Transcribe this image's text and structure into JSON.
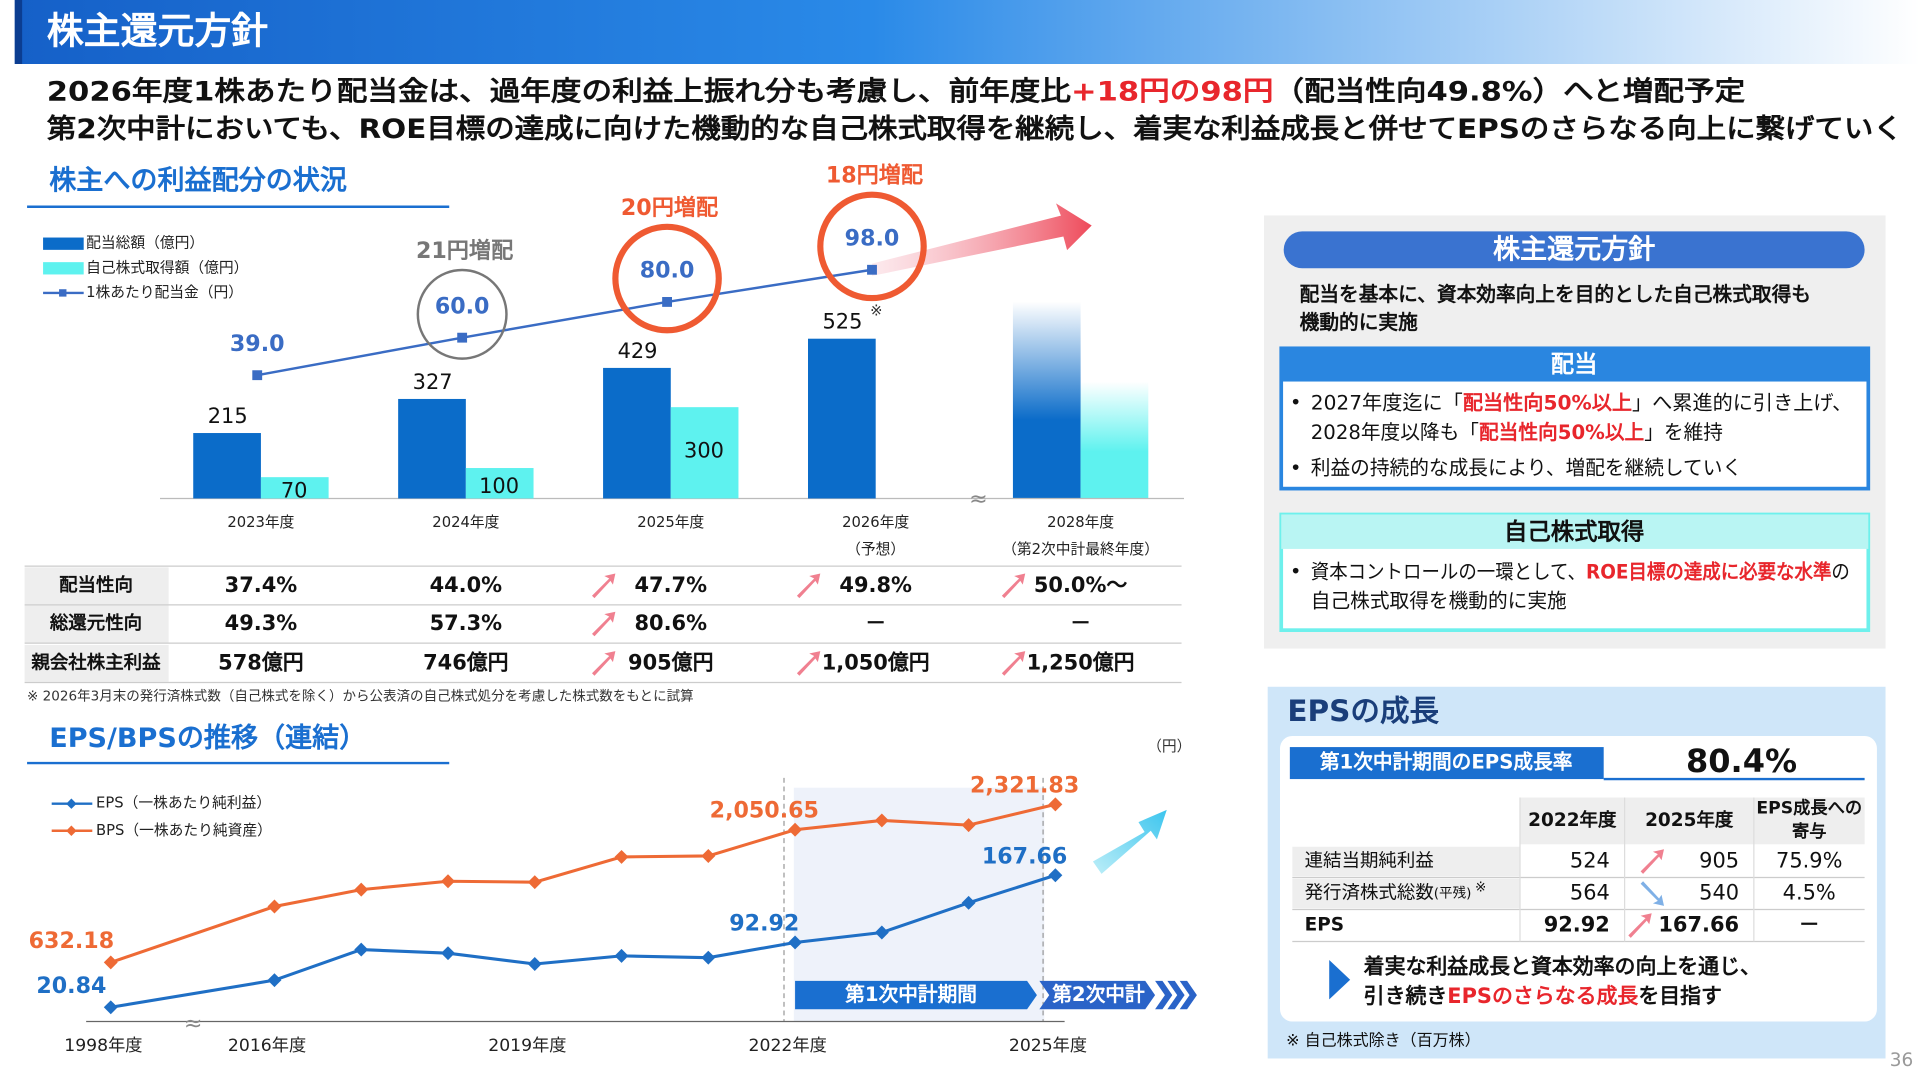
{
  "header": {
    "title": "株主還元方針"
  },
  "headline": {
    "line1": {
      "before": "2026年度1株あたり配当金は、過年度の利益上振れ分も考慮し、前年度比",
      "highlight": "+18円の98円",
      "after": "（配当性向49.8%）へと増配予定"
    },
    "line2": "第2次中計においても、ROE目標の達成に向けた機動的な自己株式取得を継続し、着実な利益成長と併せてEPSのさらなる向上に繋げていく"
  },
  "section1": {
    "title": "株主への利益配分の状況",
    "footnote": "※ 2026年3月末の発行済株式数（自己株式を除く）から公表済の自己株式処分を考慮した株式数をもとに試算"
  },
  "section2": {
    "title": "EPS/BPSの推移（連結）",
    "unit": "（円）"
  },
  "chart_data": [
    {
      "type": "bar-line",
      "categories": [
        "2023年度",
        "2024年度",
        "2025年度",
        "2026年度",
        "2028年度"
      ],
      "category_notes": [
        null,
        null,
        null,
        "（予想）",
        "（第2次中計最終年度）"
      ],
      "series": [
        {
          "name": "配当総額（億円）",
          "color": "#0b6cc9",
          "values": [
            215,
            327,
            429,
            525,
            null
          ]
        },
        {
          "name": "自己株式取得額（億円）",
          "color": "#5ef2ef",
          "values": [
            70,
            100,
            300,
            null,
            null
          ]
        },
        {
          "name": "1株あたり配当金（円）",
          "color": "#3a6cc4",
          "axis": "y2",
          "values": [
            39.0,
            60.0,
            80.0,
            98.0,
            null
          ],
          "value_labels": [
            "39.0",
            "60.0",
            "80.0",
            "98.0",
            null
          ]
        }
      ],
      "ylim": [
        0,
        910
      ],
      "y2lim": [
        -30,
        125
      ],
      "increase_labels": [
        null,
        "21円増配",
        "20円増配",
        "18円増配",
        null
      ],
      "increase_colors": [
        null,
        "#777777",
        "#ef5a32",
        "#ef5a32",
        null
      ],
      "footnote_mark": "※"
    },
    {
      "type": "line",
      "categories": [
        "1998年度",
        "2016年度",
        null,
        null,
        "2019年度",
        null,
        null,
        "2022年度",
        null,
        null,
        "2025年度"
      ],
      "series": [
        {
          "name": "EPS（一株あたり純利益）",
          "color": "#1f6fc5",
          "axis": "y2",
          "values": [
            20.84,
            51,
            85,
            81,
            69,
            78,
            76,
            92.92,
            104,
            137,
            167.66
          ],
          "value_labels": [
            "20.84",
            null,
            null,
            null,
            null,
            null,
            null,
            "92.92",
            null,
            null,
            "167.66"
          ]
        },
        {
          "name": "BPS（一株あたり純資産）",
          "color": "#ee6a35",
          "values": [
            632.18,
            1230,
            1410,
            1500,
            1490,
            1760,
            1770,
            2050.65,
            2150,
            2100,
            2321.83
          ],
          "value_labels": [
            "632.18",
            null,
            null,
            null,
            null,
            null,
            null,
            "2,050.65",
            null,
            null,
            "2,321.83"
          ]
        }
      ],
      "ylim": [
        0,
        2500
      ],
      "y2lim": [
        5,
        265
      ],
      "periods": [
        "第1次中計期間",
        "第2次中計"
      ]
    }
  ],
  "payout_table": {
    "rows": [
      {
        "label": "配当性向",
        "values": [
          "37.4%",
          "44.0%",
          "47.7%",
          "49.8%",
          "50.0%～"
        ]
      },
      {
        "label": "総還元性向",
        "values": [
          "49.3%",
          "57.3%",
          "80.6%",
          "－",
          "－"
        ]
      },
      {
        "label": "親会社株主利益",
        "values": [
          "578億円",
          "746億円",
          "905億円",
          "1,050億円",
          "1,250億円"
        ]
      }
    ]
  },
  "policy_panel": {
    "title": "株主還元方針",
    "lead": [
      "配当を基本に、資本効率向上を目的とした自己株式取得も",
      "機動的に実施"
    ],
    "dividend": {
      "title": "配当",
      "b1": [
        "2027年度迄に「",
        "配当性向50%以上",
        "」へ累進的に引き上げ、"
      ],
      "b1cont": [
        "2028年度以降も「",
        "配当性向50%以上",
        "」を維持"
      ],
      "b2": "利益の持続的な成長により、増配を継続していく"
    },
    "buyback": {
      "title": "自己株式取得",
      "b1": [
        "資本コントロールの一環として、",
        "ROE目標の達成に必要な水準",
        "の"
      ],
      "b1cont": "自己株式取得を機動的に実施"
    }
  },
  "eps_panel": {
    "title": "EPSの成長",
    "growth_label": "第1次中計期間のEPS成長率",
    "growth_value": "80.4%",
    "columns": [
      "2022年度",
      "2025年度"
    ],
    "contribution_header": [
      "EPS成長への",
      "寄与"
    ],
    "rows": [
      {
        "label": "連結当期純利益",
        "values": [
          "524",
          "905",
          "75.9%"
        ]
      },
      {
        "label": "発行済株式総数",
        "label_small": "(平残)",
        "mark": "※",
        "values": [
          "564",
          "540",
          "4.5%"
        ]
      },
      {
        "label": "EPS",
        "values": [
          "92.92",
          "167.66",
          "－"
        ]
      }
    ],
    "message": {
      "line1": "着実な利益成長と資本効率の向上を通じ、",
      "line2": [
        "引き続き",
        "EPSのさらなる成長",
        "を目指す"
      ]
    },
    "footnote": "※ 自己株式除き（百万株）"
  },
  "page_number": "36"
}
